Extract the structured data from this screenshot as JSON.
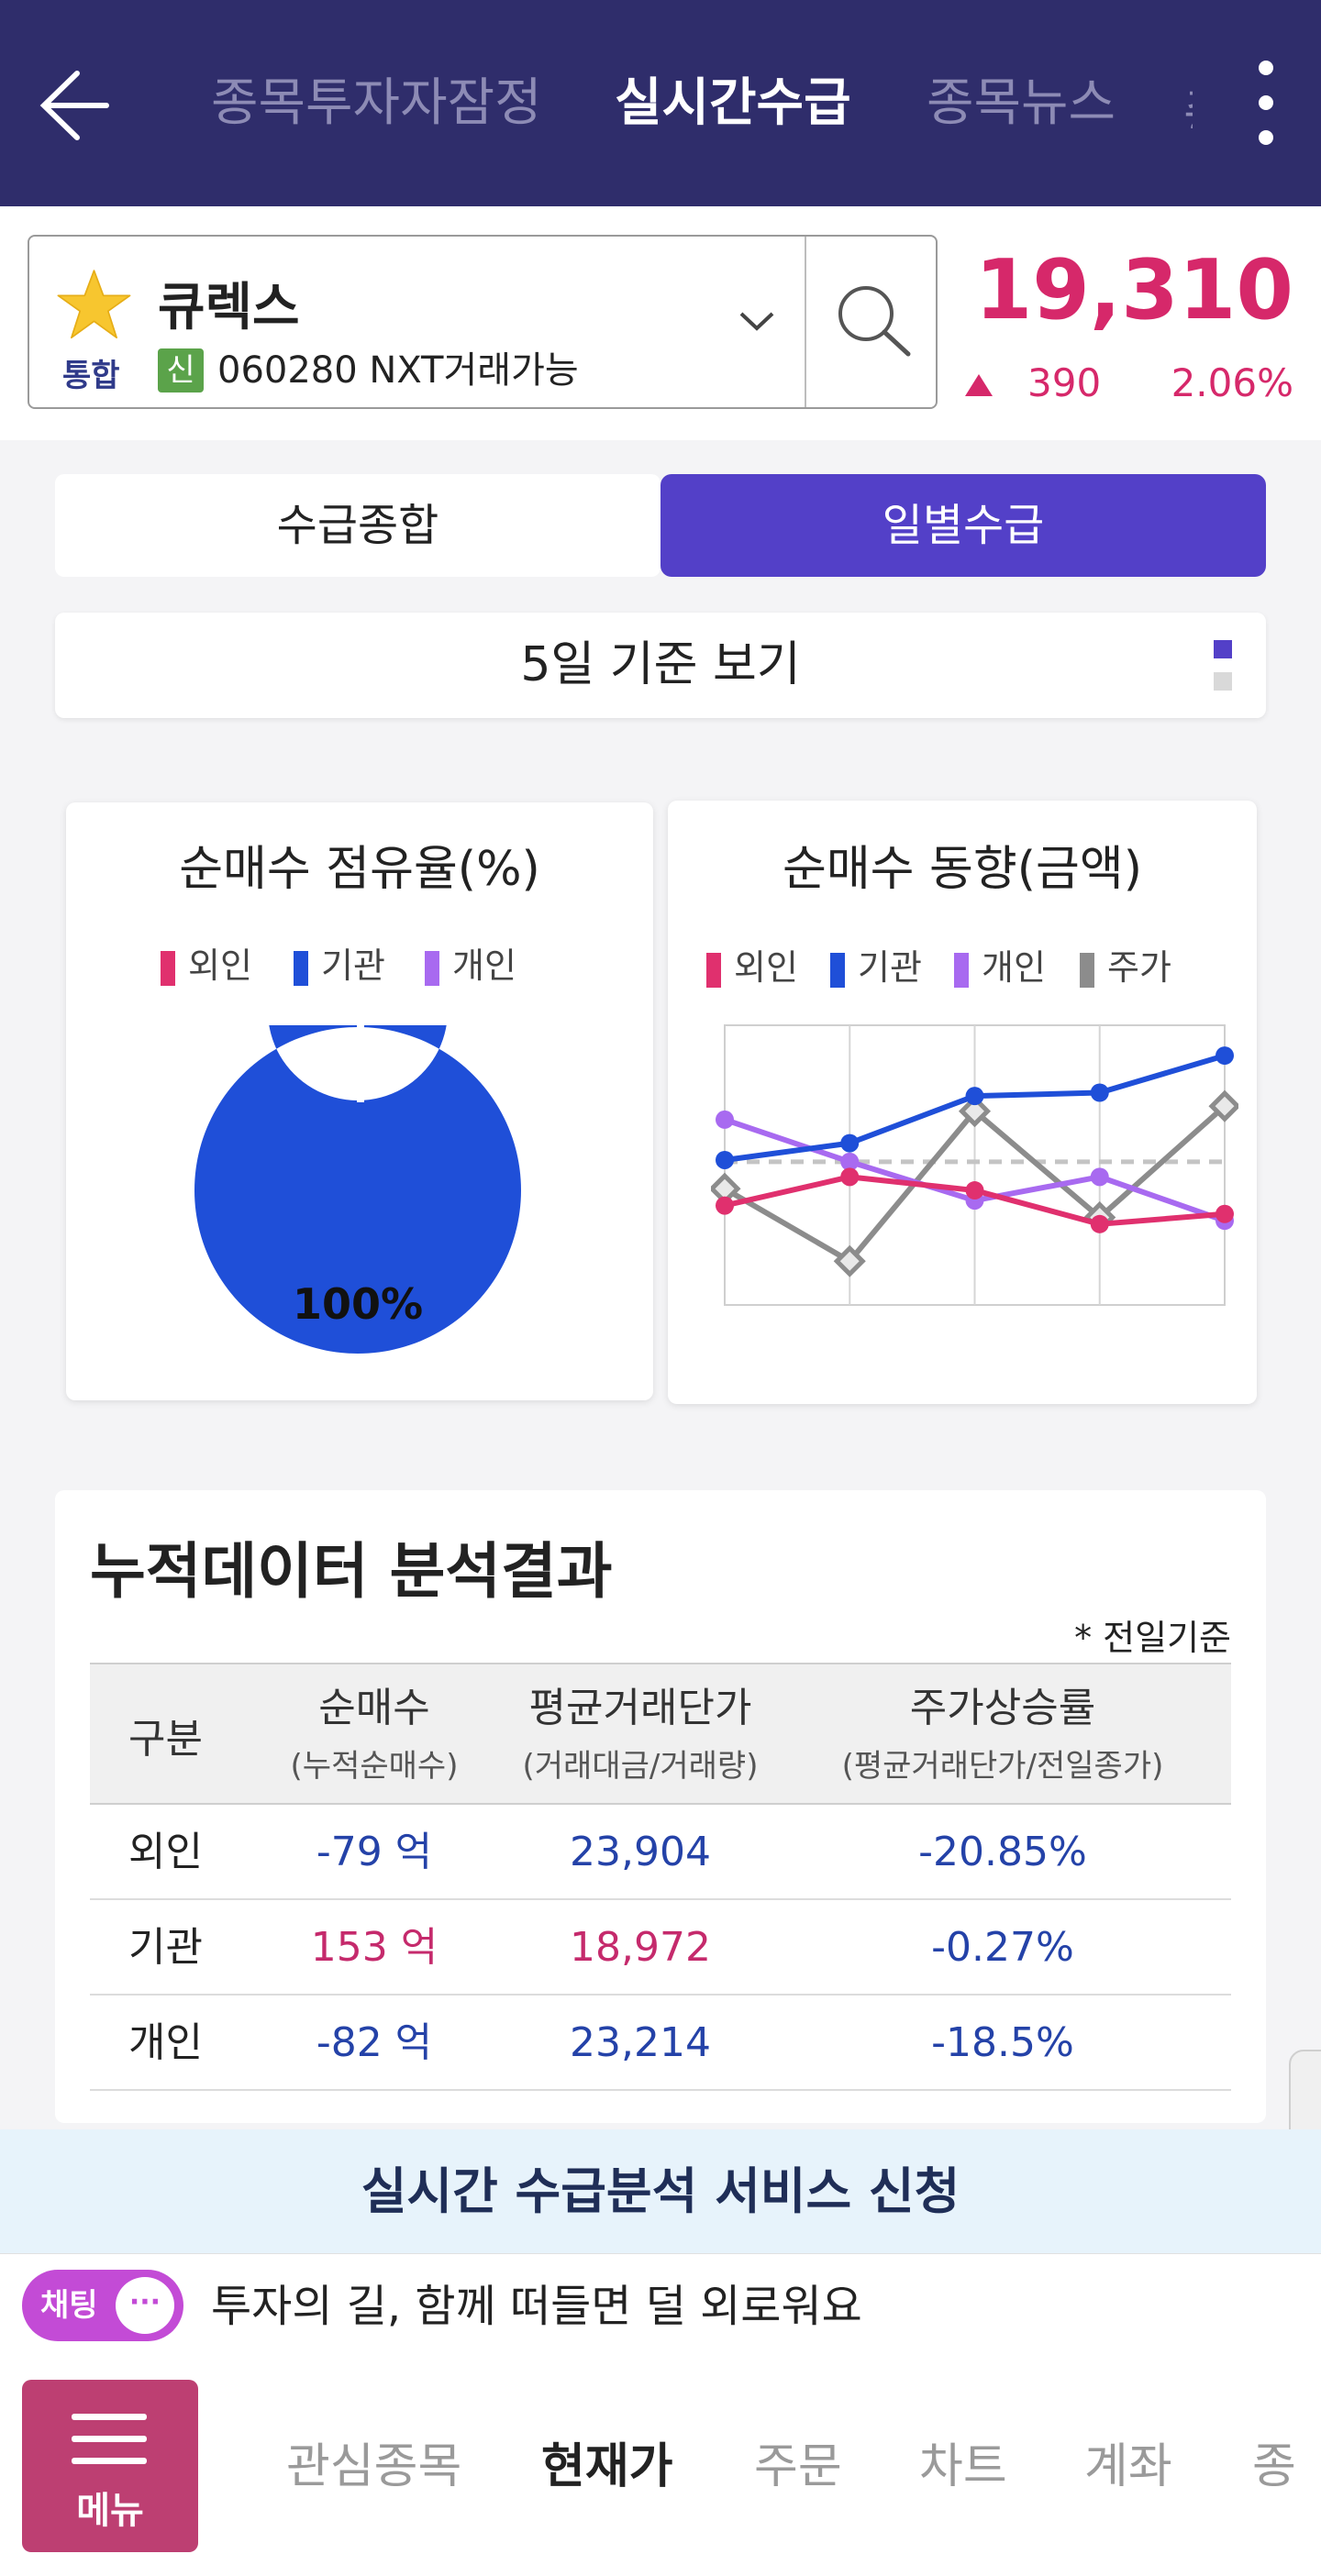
{
  "header": {
    "tabs": [
      {
        "label": "종목투자자잠정"
      },
      {
        "label": "실시간수급"
      },
      {
        "label": "종목뉴스"
      }
    ],
    "truncated_tab": "종"
  },
  "stock": {
    "name": "큐렉스",
    "market": "통합",
    "badge": "신",
    "code_line": "060280 NXT거래가능",
    "price": "19,310",
    "change": "390",
    "change_pct": "2.06%",
    "up_color": "#d6286a"
  },
  "segment": {
    "options": [
      "수급종합",
      "일별수급"
    ],
    "selected": "일별수급"
  },
  "period_label": "5일 기준 보기",
  "share_chart": {
    "title": "순매수 점유율(%)",
    "legend": [
      "외인",
      "기관",
      "개인"
    ],
    "center_label": "100%"
  },
  "trend_chart": {
    "title": "순매수 동향(금액)",
    "legend": [
      "외인",
      "기관",
      "개인",
      "주가"
    ]
  },
  "chart_data": [
    {
      "type": "pie",
      "title": "순매수 점유율(%)",
      "labels": [
        "외인",
        "기관",
        "개인"
      ],
      "values": [
        0,
        100,
        0
      ],
      "colors": [
        "#e0306e",
        "#1f4fd8",
        "#a86af0"
      ],
      "legend": "top",
      "data_label": "100%"
    },
    {
      "type": "line",
      "title": "순매수 동향(금액)",
      "x": [
        1,
        2,
        3,
        4,
        5
      ],
      "grid": true,
      "legend": "top",
      "series": [
        {
          "name": "외인",
          "color": "#e0306e",
          "values": [
            -0.35,
            0.5,
            0.1,
            -0.9,
            -0.6
          ]
        },
        {
          "name": "기관",
          "color": "#1f4fd8",
          "values": [
            1.0,
            1.5,
            2.9,
            3.0,
            4.1
          ]
        },
        {
          "name": "개인",
          "color": "#a86af0",
          "values": [
            2.2,
            0.95,
            -0.2,
            0.5,
            -0.8
          ]
        },
        {
          "name": "주가",
          "color": "#8c8c8c",
          "values": [
            0.15,
            -2.0,
            2.45,
            -0.7,
            2.6
          ]
        }
      ],
      "ylim": [
        -3.3,
        5.0
      ],
      "reference_line": 0.95
    }
  ],
  "accumulated": {
    "title": "누적데이터 분석결과",
    "note": "* 전일기준",
    "columns": [
      {
        "label": "구분",
        "sub": ""
      },
      {
        "label": "순매수",
        "sub": "(누적순매수)"
      },
      {
        "label": "평균거래단가",
        "sub": "(거래대금/거래량)"
      },
      {
        "label": "주가상승률",
        "sub": "(평균거래단가/전일종가)"
      }
    ],
    "rows": [
      {
        "name": "외인",
        "net": "-79 억",
        "avg": "23,904",
        "rate": "-20.85%",
        "sign": "neg"
      },
      {
        "name": "기관",
        "net": "153 억",
        "avg": "18,972",
        "rate": "-0.27%",
        "sign": "pos"
      },
      {
        "name": "개인",
        "net": "-82 억",
        "avg": "23,214",
        "rate": "-18.5%",
        "sign": "neg"
      }
    ]
  },
  "promo_text": "실시간 수급분석  서비스 신청",
  "chat": {
    "button_label": "채팅",
    "bubble": "···",
    "message": "투자의 길, 함께 떠들면 덜 외로워요"
  },
  "bottom_nav": {
    "menu_label": "메뉴",
    "items": [
      "관심종목",
      "현재가",
      "주문",
      "차트",
      "계좌",
      "종"
    ],
    "active": "현재가"
  }
}
